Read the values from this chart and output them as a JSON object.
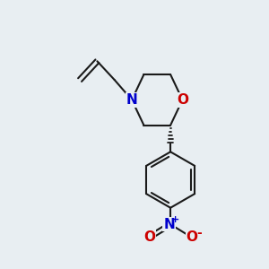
{
  "bg_color": "#e8eef2",
  "bond_color": "#1a1a1a",
  "N_color": "#0000cc",
  "O_color": "#cc0000",
  "line_width": 1.5,
  "font_size_atom": 11,
  "fig_size": [
    3.0,
    3.0
  ],
  "dpi": 100,
  "xlim": [
    0,
    10
  ],
  "ylim": [
    0,
    10
  ]
}
